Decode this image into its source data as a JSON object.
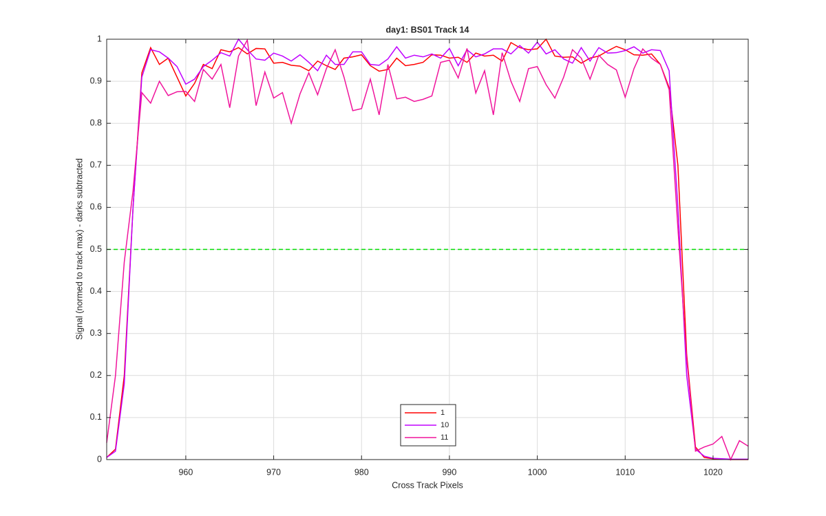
{
  "chart_data": {
    "type": "line",
    "title": "day1: BS01  Track 14",
    "x_label": "Cross Track Pixels",
    "y_label": "Signal (normed to track max) - darks subtracted",
    "x": [
      951,
      952,
      953,
      954,
      955,
      956,
      957,
      958,
      959,
      960,
      961,
      962,
      963,
      964,
      965,
      966,
      967,
      968,
      969,
      970,
      971,
      972,
      973,
      974,
      975,
      976,
      977,
      978,
      979,
      980,
      981,
      982,
      983,
      984,
      985,
      986,
      987,
      988,
      989,
      990,
      991,
      992,
      993,
      994,
      995,
      996,
      997,
      998,
      999,
      1000,
      1001,
      1002,
      1003,
      1004,
      1005,
      1006,
      1007,
      1008,
      1009,
      1010,
      1011,
      1012,
      1013,
      1014,
      1015,
      1016,
      1017,
      1018,
      1019,
      1020,
      1021,
      1022,
      1023,
      1024
    ],
    "series": [
      {
        "name": "1",
        "color": "#ff0000",
        "values": [
          0.005,
          0.025,
          0.2,
          0.6,
          0.92,
          0.98,
          0.94,
          0.955,
          0.91,
          0.865,
          0.895,
          0.94,
          0.93,
          0.975,
          0.97,
          0.98,
          0.965,
          0.978,
          0.977,
          0.943,
          0.945,
          0.938,
          0.936,
          0.925,
          0.948,
          0.937,
          0.928,
          0.955,
          0.958,
          0.963,
          0.937,
          0.924,
          0.928,
          0.955,
          0.937,
          0.94,
          0.945,
          0.963,
          0.962,
          0.955,
          0.957,
          0.945,
          0.967,
          0.96,
          0.962,
          0.948,
          0.992,
          0.98,
          0.975,
          0.977,
          1.0,
          0.96,
          0.957,
          0.958,
          0.943,
          0.955,
          0.96,
          0.972,
          0.983,
          0.975,
          0.963,
          0.962,
          0.965,
          0.94,
          0.885,
          0.7,
          0.25,
          0.03,
          0.005,
          0.002,
          0.001,
          0.0,
          0.0,
          0.0
        ]
      },
      {
        "name": "10",
        "color": "#c000ff",
        "values": [
          0.005,
          0.02,
          0.18,
          0.6,
          0.91,
          0.975,
          0.97,
          0.955,
          0.935,
          0.893,
          0.905,
          0.935,
          0.95,
          0.968,
          0.96,
          1.0,
          0.975,
          0.953,
          0.95,
          0.967,
          0.96,
          0.948,
          0.963,
          0.945,
          0.925,
          0.962,
          0.94,
          0.94,
          0.97,
          0.97,
          0.94,
          0.938,
          0.953,
          0.982,
          0.955,
          0.962,
          0.958,
          0.965,
          0.955,
          0.978,
          0.937,
          0.975,
          0.958,
          0.965,
          0.977,
          0.977,
          0.965,
          0.985,
          0.967,
          0.993,
          0.965,
          0.975,
          0.953,
          0.943,
          0.98,
          0.948,
          0.98,
          0.967,
          0.968,
          0.973,
          0.982,
          0.967,
          0.975,
          0.973,
          0.925,
          0.6,
          0.2,
          0.025,
          0.008,
          0.003,
          0.002,
          0.001,
          0.001,
          0.001
        ]
      },
      {
        "name": "11",
        "color": "#f0149c",
        "values": [
          0.04,
          0.2,
          0.47,
          0.64,
          0.873,
          0.848,
          0.9,
          0.866,
          0.875,
          0.876,
          0.852,
          0.928,
          0.905,
          0.94,
          0.837,
          0.96,
          0.998,
          0.842,
          0.922,
          0.86,
          0.873,
          0.8,
          0.87,
          0.92,
          0.868,
          0.93,
          0.975,
          0.91,
          0.83,
          0.835,
          0.905,
          0.82,
          0.94,
          0.858,
          0.862,
          0.852,
          0.857,
          0.865,
          0.945,
          0.95,
          0.908,
          0.978,
          0.872,
          0.925,
          0.82,
          0.968,
          0.9,
          0.852,
          0.93,
          0.935,
          0.892,
          0.86,
          0.91,
          0.975,
          0.955,
          0.905,
          0.962,
          0.94,
          0.927,
          0.862,
          0.93,
          0.977,
          0.955,
          0.94,
          0.88,
          0.55,
          0.24,
          0.02,
          0.03,
          0.037,
          0.055,
          0.0,
          0.045,
          0.032
        ]
      }
    ],
    "reference_line": {
      "value": 0.5,
      "color": "#00dd00"
    },
    "xlim": [
      951,
      1024
    ],
    "xticks": [
      960,
      970,
      980,
      990,
      1000,
      1010,
      1020
    ],
    "ylim": [
      0,
      1
    ],
    "yticks": [
      0,
      0.1,
      0.2,
      0.3,
      0.4,
      0.5,
      0.6,
      0.7,
      0.8,
      0.9,
      1
    ],
    "grid": true,
    "legend": "bottom"
  }
}
